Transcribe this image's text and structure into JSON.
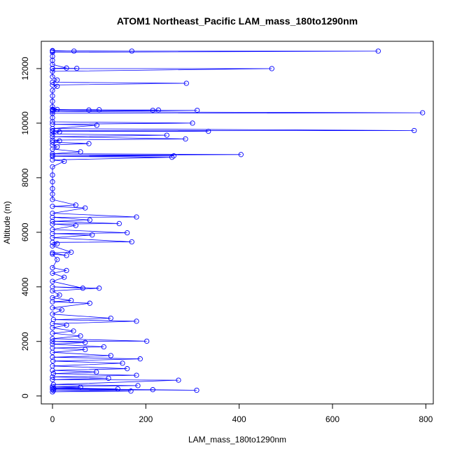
{
  "chart_data": {
    "type": "scatter",
    "title": "ATOM1 Northeast_Pacific LAM_mass_180to1290nm",
    "xlabel": "LAM_mass_180to1290nm",
    "ylabel": "Altitude (m)",
    "xlim": [
      -24,
      816
    ],
    "ylim": [
      -290,
      13000
    ],
    "xticks": [
      0,
      200,
      400,
      600,
      800
    ],
    "yticks": [
      0,
      2000,
      4000,
      6000,
      8000,
      10000,
      12000
    ],
    "grid": false,
    "legend": "none",
    "marker": "open-circle",
    "connected": true,
    "colors": {
      "series": "#0000ff",
      "axis": "#000000"
    },
    "points": [
      [
        0,
        150
      ],
      [
        168,
        180
      ],
      [
        2,
        200
      ],
      [
        215,
        230
      ],
      [
        0,
        250
      ],
      [
        309,
        210
      ],
      [
        3,
        270
      ],
      [
        140,
        260
      ],
      [
        0,
        300
      ],
      [
        60,
        320
      ],
      [
        0,
        350
      ],
      [
        183,
        380
      ],
      [
        2,
        420
      ],
      [
        270,
        580
      ],
      [
        0,
        600
      ],
      [
        120,
        650
      ],
      [
        0,
        700
      ],
      [
        180,
        760
      ],
      [
        2,
        820
      ],
      [
        94,
        880
      ],
      [
        0,
        940
      ],
      [
        160,
        1000
      ],
      [
        0,
        1100
      ],
      [
        150,
        1200
      ],
      [
        1,
        1280
      ],
      [
        188,
        1360
      ],
      [
        0,
        1420
      ],
      [
        125,
        1480
      ],
      [
        0,
        1600
      ],
      [
        70,
        1700
      ],
      [
        0,
        1760
      ],
      [
        110,
        1800
      ],
      [
        0,
        1900
      ],
      [
        70,
        1960
      ],
      [
        0,
        2000
      ],
      [
        202,
        2010
      ],
      [
        0,
        2100
      ],
      [
        60,
        2200
      ],
      [
        0,
        2300
      ],
      [
        45,
        2380
      ],
      [
        0,
        2500
      ],
      [
        30,
        2600
      ],
      [
        0,
        2650
      ],
      [
        180,
        2740
      ],
      [
        2,
        2800
      ],
      [
        125,
        2850
      ],
      [
        0,
        3000
      ],
      [
        20,
        3150
      ],
      [
        0,
        3230
      ],
      [
        80,
        3400
      ],
      [
        0,
        3450
      ],
      [
        40,
        3500
      ],
      [
        0,
        3600
      ],
      [
        15,
        3700
      ],
      [
        0,
        3850
      ],
      [
        100,
        3950
      ],
      [
        0,
        4000
      ],
      [
        65,
        3950
      ],
      [
        0,
        4200
      ],
      [
        25,
        4350
      ],
      [
        0,
        4500
      ],
      [
        30,
        4600
      ],
      [
        0,
        4700
      ],
      [
        10,
        5000
      ],
      [
        0,
        5200
      ],
      [
        30,
        5150
      ],
      [
        0,
        5250
      ],
      [
        40,
        5270
      ],
      [
        0,
        5500
      ],
      [
        10,
        5580
      ],
      [
        0,
        5630
      ],
      [
        170,
        5650
      ],
      [
        0,
        5800
      ],
      [
        85,
        5900
      ],
      [
        0,
        5950
      ],
      [
        160,
        5980
      ],
      [
        0,
        6100
      ],
      [
        50,
        6250
      ],
      [
        0,
        6300
      ],
      [
        143,
        6320
      ],
      [
        0,
        6400
      ],
      [
        80,
        6450
      ],
      [
        0,
        6550
      ],
      [
        180,
        6560
      ],
      [
        0,
        6700
      ],
      [
        70,
        6890
      ],
      [
        0,
        6950
      ],
      [
        50,
        7000
      ],
      [
        0,
        7200
      ],
      [
        0,
        7400
      ],
      [
        0,
        7600
      ],
      [
        0,
        7850
      ],
      [
        0,
        8100
      ],
      [
        0,
        8400
      ],
      [
        25,
        8600
      ],
      [
        0,
        8650
      ],
      [
        256,
        8750
      ],
      [
        0,
        8780
      ],
      [
        260,
        8800
      ],
      [
        0,
        8820
      ],
      [
        404,
        8850
      ],
      [
        0,
        8880
      ],
      [
        60,
        8950
      ],
      [
        0,
        9050
      ],
      [
        10,
        9130
      ],
      [
        0,
        9200
      ],
      [
        78,
        9250
      ],
      [
        0,
        9300
      ],
      [
        15,
        9350
      ],
      [
        0,
        9380
      ],
      [
        285,
        9420
      ],
      [
        0,
        9500
      ],
      [
        245,
        9560
      ],
      [
        0,
        9600
      ],
      [
        15,
        9680
      ],
      [
        0,
        9700
      ],
      [
        334,
        9700
      ],
      [
        0,
        9720
      ],
      [
        775,
        9730
      ],
      [
        0,
        9800
      ],
      [
        95,
        9920
      ],
      [
        0,
        9960
      ],
      [
        300,
        10000
      ],
      [
        0,
        10050
      ],
      [
        0,
        10200
      ],
      [
        0,
        10360
      ],
      [
        793,
        10380
      ],
      [
        0,
        10420
      ],
      [
        310,
        10470
      ],
      [
        0,
        10470
      ],
      [
        227,
        10480
      ],
      [
        0,
        10480
      ],
      [
        215,
        10470
      ],
      [
        0,
        10480
      ],
      [
        100,
        10490
      ],
      [
        0,
        10490
      ],
      [
        78,
        10480
      ],
      [
        0,
        10500
      ],
      [
        10,
        10500
      ],
      [
        0,
        10600
      ],
      [
        0,
        10800
      ],
      [
        0,
        11000
      ],
      [
        0,
        11200
      ],
      [
        10,
        11350
      ],
      [
        0,
        11400
      ],
      [
        287,
        11460
      ],
      [
        0,
        11500
      ],
      [
        10,
        11580
      ],
      [
        0,
        11700
      ],
      [
        0,
        11900
      ],
      [
        470,
        12000
      ],
      [
        0,
        12000
      ],
      [
        52,
        12010
      ],
      [
        0,
        12010
      ],
      [
        30,
        12020
      ],
      [
        0,
        12150
      ],
      [
        0,
        12300
      ],
      [
        0,
        12450
      ],
      [
        0,
        12600
      ],
      [
        698,
        12640
      ],
      [
        0,
        12640
      ],
      [
        170,
        12640
      ],
      [
        0,
        12650
      ],
      [
        46,
        12640
      ],
      [
        0,
        12660
      ]
    ]
  }
}
